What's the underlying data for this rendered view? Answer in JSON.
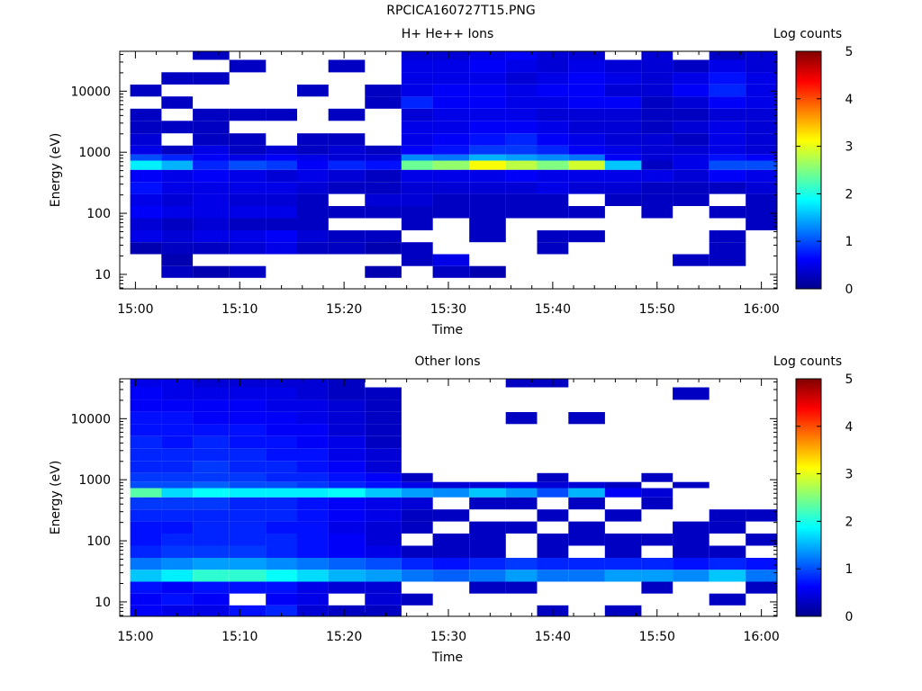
{
  "page_title": "RPCICA160727T15.PNG",
  "colorscale": {
    "stops": [
      "#00008c",
      "#0000ff",
      "#0080ff",
      "#00ffff",
      "#80ff80",
      "#ffff00",
      "#ff8000",
      "#ff0000",
      "#800000"
    ]
  },
  "chart_data": [
    {
      "type": "heatmap",
      "title": "H+ He++ Ions",
      "xlabel": "Time",
      "ylabel": "Energy (eV)",
      "y_scale": "log",
      "ylim": [
        5.8,
        45000
      ],
      "x_ticks": [
        "15:00",
        "15:10",
        "15:20",
        "15:30",
        "15:40",
        "15:50",
        "16:00"
      ],
      "y_ticks": [
        {
          "value": 10,
          "label": "10"
        },
        {
          "value": 100,
          "label": "100"
        },
        {
          "value": 1000,
          "label": "1000"
        },
        {
          "value": 10000,
          "label": "10000"
        }
      ],
      "colorbar": {
        "label": "Log counts",
        "range": [
          0,
          5
        ],
        "ticks": [
          "0",
          "1",
          "2",
          "3",
          "4",
          "5"
        ]
      },
      "time_bins": [
        "15:01",
        "15:04",
        "15:07",
        "15:11",
        "15:14",
        "15:17",
        "15:20",
        "15:24",
        "15:27",
        "15:30",
        "15:34",
        "15:37",
        "15:40",
        "15:43",
        "15:47",
        "15:50",
        "15:53",
        "15:57",
        "16:00"
      ],
      "energy_bins_eV": [
        7,
        11,
        17,
        27,
        42,
        66,
        105,
        165,
        260,
        410,
        650,
        820,
        1030,
        1600,
        2600,
        4100,
        6500,
        10300,
        16000,
        26000,
        41000
      ],
      "log_counts": [
        [
          0,
          0,
          0,
          0,
          0,
          0,
          0,
          0,
          0,
          0,
          0,
          0,
          0,
          0,
          0,
          0,
          0,
          0,
          0
        ],
        [
          0,
          0.3,
          0.2,
          0.3,
          0,
          0,
          0,
          0.2,
          0,
          0.3,
          0.2,
          0,
          0,
          0,
          0,
          0,
          0,
          0,
          0
        ],
        [
          0,
          0.2,
          0,
          0,
          0,
          0,
          0,
          0,
          0.3,
          0.5,
          0,
          0,
          0,
          0,
          0,
          0,
          0.3,
          0.3,
          0
        ],
        [
          0.2,
          0.3,
          0.3,
          0.4,
          0.5,
          0.3,
          0.3,
          0.2,
          0.3,
          0,
          0,
          0,
          0.3,
          0,
          0,
          0,
          0,
          0.3,
          0
        ],
        [
          0.5,
          0.4,
          0.5,
          0.5,
          0.6,
          0.4,
          0.3,
          0.3,
          0,
          0,
          0.3,
          0,
          0.3,
          0.3,
          0,
          0,
          0,
          0.3,
          0
        ],
        [
          0.4,
          0.3,
          0.4,
          0.3,
          0.3,
          0.3,
          0,
          0,
          0.3,
          0,
          0.3,
          0,
          0,
          0,
          0,
          0,
          0,
          0,
          0.3
        ],
        [
          0.6,
          0.5,
          0.5,
          0.5,
          0.5,
          0.3,
          0.3,
          0.3,
          0.3,
          0.3,
          0.3,
          0.3,
          0.3,
          0.3,
          0,
          0.3,
          0,
          0.3,
          0.3
        ],
        [
          0.5,
          0.4,
          0.5,
          0.4,
          0.4,
          0.3,
          0,
          0.4,
          0.4,
          0.3,
          0.3,
          0.3,
          0.3,
          0,
          0.3,
          0.3,
          0.3,
          0,
          0.3
        ],
        [
          0.7,
          0.5,
          0.5,
          0.5,
          0.5,
          0.4,
          0.3,
          0.3,
          0.4,
          0.4,
          0.4,
          0.4,
          0.5,
          0.4,
          0.4,
          0.3,
          0.3,
          0.3,
          0.4
        ],
        [
          0.6,
          0.5,
          0.6,
          0.5,
          0.4,
          0.5,
          0.4,
          0.3,
          0.5,
          0.5,
          0.5,
          0.6,
          0.5,
          0.5,
          0.5,
          0.5,
          0.4,
          0.6,
          0.5
        ],
        [
          1.8,
          1.5,
          0.8,
          1.0,
          0.9,
          0.6,
          0.8,
          0.7,
          2.4,
          2.6,
          3.1,
          2.8,
          2.5,
          2.9,
          1.6,
          0.3,
          0.5,
          1.0,
          1.0
        ],
        [
          1.0,
          0.8,
          0.6,
          0.5,
          0.6,
          0.5,
          0.4,
          0.4,
          1.3,
          1.2,
          1.5,
          1.4,
          1.3,
          1.2,
          0.6,
          0.4,
          0.5,
          0.7,
          0.6
        ],
        [
          0.5,
          0.3,
          0.5,
          0.3,
          0.4,
          0.3,
          0.4,
          0.3,
          0.6,
          0.7,
          0.9,
          0.9,
          0.8,
          0.6,
          0.5,
          0.4,
          0.4,
          0.5,
          0.4
        ],
        [
          0.4,
          0,
          0.3,
          0.3,
          0,
          0.3,
          0.3,
          0,
          0.5,
          0.6,
          0.7,
          0.8,
          0.6,
          0.5,
          0.4,
          0.4,
          0.3,
          0.5,
          0.4
        ],
        [
          0.3,
          0.3,
          0.3,
          0,
          0,
          0,
          0,
          0,
          0.5,
          0.5,
          0.6,
          0.6,
          0.5,
          0.4,
          0.4,
          0.3,
          0.4,
          0.5,
          0.4
        ],
        [
          0.3,
          0,
          0.3,
          0.3,
          0.3,
          0,
          0.3,
          0,
          0.4,
          0.5,
          0.5,
          0.5,
          0.4,
          0.4,
          0.4,
          0.3,
          0.3,
          0.4,
          0.4
        ],
        [
          0,
          0.3,
          0,
          0,
          0,
          0,
          0,
          0.3,
          0.8,
          0.6,
          0.6,
          0.5,
          0.5,
          0.6,
          0.6,
          0.3,
          0.4,
          0.6,
          0.5
        ],
        [
          0.3,
          0,
          0,
          0,
          0,
          0.3,
          0,
          0.3,
          0.5,
          0.6,
          0.6,
          0.5,
          0.6,
          0.6,
          0.4,
          0.4,
          0.6,
          0.8,
          0.5
        ],
        [
          0,
          0.3,
          0.3,
          0,
          0,
          0,
          0,
          0,
          0.5,
          0.5,
          0.5,
          0.4,
          0.5,
          0.6,
          0.5,
          0.4,
          0.5,
          0.7,
          0.5
        ],
        [
          0,
          0,
          0,
          0.3,
          0,
          0,
          0.3,
          0,
          0.5,
          0.5,
          0.6,
          0.5,
          0.4,
          0.5,
          0.4,
          0.4,
          0.3,
          0.5,
          0.4
        ],
        [
          0,
          0,
          0.3,
          0,
          0,
          0,
          0,
          0,
          0.4,
          0.4,
          0.5,
          0.6,
          0.4,
          0.4,
          0,
          0.4,
          0,
          0.3,
          0.4
        ]
      ]
    },
    {
      "type": "heatmap",
      "title": "Other Ions",
      "xlabel": "Time",
      "ylabel": "Energy (eV)",
      "y_scale": "log",
      "ylim": [
        5.8,
        45000
      ],
      "x_ticks": [
        "15:00",
        "15:10",
        "15:20",
        "15:30",
        "15:40",
        "15:50",
        "16:00"
      ],
      "y_ticks": [
        {
          "value": 10,
          "label": "10"
        },
        {
          "value": 100,
          "label": "100"
        },
        {
          "value": 1000,
          "label": "1000"
        },
        {
          "value": 10000,
          "label": "10000"
        }
      ],
      "colorbar": {
        "label": "Log counts",
        "range": [
          0,
          5
        ],
        "ticks": [
          "0",
          "1",
          "2",
          "3",
          "4",
          "5"
        ]
      },
      "time_bins": [
        "15:01",
        "15:04",
        "15:07",
        "15:11",
        "15:14",
        "15:17",
        "15:20",
        "15:24",
        "15:27",
        "15:30",
        "15:34",
        "15:37",
        "15:40",
        "15:43",
        "15:47",
        "15:50",
        "15:53",
        "15:57",
        "16:00"
      ],
      "energy_bins_eV": [
        7,
        11,
        17,
        27,
        42,
        66,
        105,
        165,
        260,
        410,
        650,
        820,
        1030,
        1600,
        2600,
        4100,
        6500,
        10300,
        16000,
        26000,
        41000
      ],
      "log_counts": [
        [
          0.6,
          0.5,
          0.5,
          0.7,
          0.8,
          0.4,
          0.3,
          0.3,
          0,
          0,
          0,
          0,
          0.3,
          0,
          0.3,
          0,
          0,
          0,
          0
        ],
        [
          0.6,
          0.7,
          0.6,
          0,
          0.6,
          0.5,
          0,
          0.4,
          0.3,
          0,
          0,
          0,
          0,
          0,
          0,
          0,
          0,
          0.3,
          0
        ],
        [
          0.7,
          0.6,
          0.7,
          0.7,
          0.7,
          0.5,
          0.4,
          0.4,
          0,
          0,
          0.3,
          0.3,
          0,
          0,
          0,
          0.3,
          0,
          0,
          0.3
        ],
        [
          1.6,
          1.8,
          2.1,
          2.1,
          1.9,
          1.7,
          1.5,
          1.4,
          1.2,
          1.1,
          1.2,
          1.4,
          1.2,
          1.2,
          1.4,
          1.4,
          1.3,
          1.6,
          1.2
        ],
        [
          1.2,
          1.3,
          1.4,
          1.4,
          1.3,
          1.2,
          1.1,
          1.0,
          0.8,
          0.7,
          0.8,
          0.9,
          0.8,
          0.8,
          0.8,
          0.8,
          0.7,
          0.8,
          0.7
        ],
        [
          0.8,
          0.9,
          0.9,
          0.9,
          0.8,
          0.7,
          0.6,
          0.5,
          0.3,
          0.3,
          0.3,
          0,
          0.3,
          0,
          0.3,
          0,
          0.3,
          0.3,
          0
        ],
        [
          0.7,
          0.8,
          0.8,
          0.8,
          0.8,
          0.7,
          0.6,
          0.4,
          0,
          0.3,
          0.3,
          0,
          0.3,
          0.3,
          0.3,
          0.3,
          0.3,
          0,
          0.3
        ],
        [
          0.7,
          0.7,
          0.8,
          0.8,
          0.7,
          0.7,
          0.5,
          0.4,
          0.3,
          0,
          0.3,
          0.3,
          0,
          0.3,
          0,
          0,
          0.3,
          0.3,
          0
        ],
        [
          0.8,
          0.8,
          0.8,
          0.8,
          0.8,
          0.7,
          0.6,
          0.5,
          0.3,
          0.3,
          0,
          0,
          0.3,
          0,
          0.3,
          0,
          0,
          0.3,
          0.3
        ],
        [
          0.9,
          0.9,
          0.9,
          0.8,
          0.8,
          0.7,
          0.6,
          0.5,
          0.4,
          0,
          0.3,
          0.3,
          0,
          0.3,
          0,
          0.3,
          0,
          0,
          0
        ],
        [
          2.3,
          1.7,
          1.9,
          1.8,
          1.8,
          1.8,
          1.9,
          1.6,
          1.4,
          1.3,
          1.6,
          1.4,
          1.0,
          1.5,
          0.6,
          0.4,
          0,
          0,
          0
        ],
        [
          1.0,
          1.0,
          1.1,
          1.0,
          1.0,
          0.9,
          0.8,
          0.7,
          0.5,
          0.4,
          0.4,
          0.5,
          0.4,
          0.4,
          0.3,
          0,
          0.3,
          0,
          0
        ],
        [
          0.9,
          0.9,
          0.9,
          0.9,
          0.8,
          0.8,
          0.7,
          0.6,
          0.3,
          0,
          0,
          0,
          0.3,
          0,
          0,
          0.3,
          0,
          0,
          0
        ],
        [
          0.8,
          0.8,
          0.9,
          0.8,
          0.8,
          0.7,
          0.6,
          0.4,
          0,
          0,
          0,
          0,
          0,
          0,
          0,
          0,
          0,
          0,
          0
        ],
        [
          0.8,
          0.8,
          0.8,
          0.8,
          0.7,
          0.7,
          0.5,
          0.4,
          0,
          0,
          0,
          0,
          0,
          0,
          0,
          0,
          0,
          0,
          0
        ],
        [
          0.8,
          0.7,
          0.8,
          0.7,
          0.7,
          0.6,
          0.5,
          0.3,
          0,
          0,
          0,
          0,
          0,
          0,
          0,
          0,
          0,
          0,
          0
        ],
        [
          0.7,
          0.7,
          0.7,
          0.7,
          0.6,
          0.6,
          0.4,
          0.3,
          0,
          0,
          0,
          0,
          0,
          0,
          0,
          0,
          0,
          0,
          0
        ],
        [
          0.7,
          0.7,
          0.6,
          0.6,
          0.6,
          0.5,
          0.4,
          0.3,
          0,
          0,
          0,
          0.3,
          0,
          0.3,
          0,
          0,
          0,
          0,
          0
        ],
        [
          0.6,
          0.6,
          0.6,
          0.6,
          0.5,
          0.5,
          0.4,
          0.3,
          0,
          0,
          0,
          0,
          0,
          0,
          0,
          0,
          0,
          0,
          0
        ],
        [
          0.6,
          0.5,
          0.5,
          0.5,
          0.5,
          0.4,
          0.3,
          0.3,
          0,
          0,
          0,
          0,
          0,
          0,
          0,
          0,
          0.3,
          0,
          0
        ],
        [
          0.5,
          0.5,
          0.4,
          0.4,
          0.4,
          0.4,
          0.3,
          0,
          0,
          0,
          0,
          0.3,
          0.3,
          0,
          0,
          0,
          0,
          0,
          0
        ]
      ]
    }
  ]
}
